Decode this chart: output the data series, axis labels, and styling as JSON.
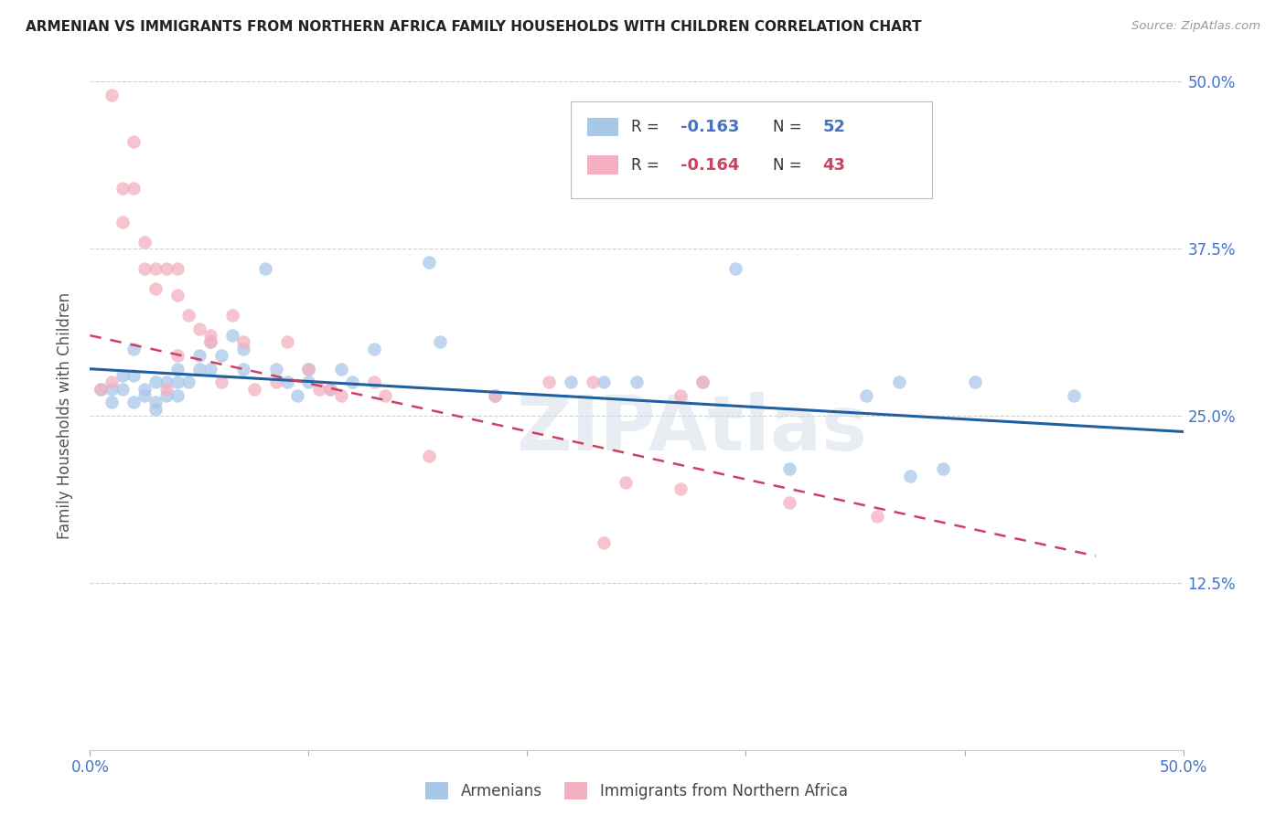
{
  "title": "ARMENIAN VS IMMIGRANTS FROM NORTHERN AFRICA FAMILY HOUSEHOLDS WITH CHILDREN CORRELATION CHART",
  "source": "Source: ZipAtlas.com",
  "ylabel": "Family Households with Children",
  "xlim": [
    0.0,
    0.5
  ],
  "ylim": [
    0.0,
    0.5
  ],
  "xticks": [
    0.0,
    0.1,
    0.2,
    0.3,
    0.4,
    0.5
  ],
  "yticks": [
    0.0,
    0.125,
    0.25,
    0.375,
    0.5
  ],
  "ytick_labels_right": [
    "",
    "12.5%",
    "25.0%",
    "37.5%",
    "50.0%"
  ],
  "xtick_labels": [
    "0.0%",
    "",
    "",
    "",
    "",
    "50.0%"
  ],
  "blue_color": "#a8c8e8",
  "pink_color": "#f4b0c0",
  "blue_line_color": "#2060a0",
  "pink_line_color": "#d04060",
  "legend_label_blue": "Armenians",
  "legend_label_pink": "Immigrants from Northern Africa",
  "watermark": "ZIPAtlas",
  "blue_scatter_x": [
    0.005,
    0.01,
    0.01,
    0.015,
    0.015,
    0.02,
    0.02,
    0.02,
    0.025,
    0.025,
    0.03,
    0.03,
    0.03,
    0.035,
    0.035,
    0.04,
    0.04,
    0.04,
    0.045,
    0.05,
    0.05,
    0.055,
    0.055,
    0.06,
    0.065,
    0.07,
    0.07,
    0.08,
    0.085,
    0.09,
    0.095,
    0.1,
    0.1,
    0.11,
    0.115,
    0.12,
    0.13,
    0.155,
    0.16,
    0.185,
    0.22,
    0.235,
    0.25,
    0.28,
    0.295,
    0.32,
    0.355,
    0.37,
    0.375,
    0.39,
    0.405,
    0.45
  ],
  "blue_scatter_y": [
    0.27,
    0.27,
    0.26,
    0.28,
    0.27,
    0.3,
    0.28,
    0.26,
    0.27,
    0.265,
    0.275,
    0.26,
    0.255,
    0.275,
    0.265,
    0.285,
    0.275,
    0.265,
    0.275,
    0.295,
    0.285,
    0.305,
    0.285,
    0.295,
    0.31,
    0.3,
    0.285,
    0.36,
    0.285,
    0.275,
    0.265,
    0.285,
    0.275,
    0.27,
    0.285,
    0.275,
    0.3,
    0.365,
    0.305,
    0.265,
    0.275,
    0.275,
    0.275,
    0.275,
    0.36,
    0.21,
    0.265,
    0.275,
    0.205,
    0.21,
    0.275,
    0.265
  ],
  "pink_scatter_x": [
    0.005,
    0.01,
    0.01,
    0.015,
    0.015,
    0.02,
    0.02,
    0.025,
    0.025,
    0.03,
    0.03,
    0.035,
    0.035,
    0.04,
    0.04,
    0.04,
    0.045,
    0.05,
    0.055,
    0.055,
    0.06,
    0.065,
    0.07,
    0.075,
    0.085,
    0.09,
    0.1,
    0.105,
    0.11,
    0.115,
    0.13,
    0.135,
    0.155,
    0.185,
    0.21,
    0.23,
    0.235,
    0.245,
    0.27,
    0.27,
    0.28,
    0.32,
    0.36
  ],
  "pink_scatter_y": [
    0.27,
    0.49,
    0.275,
    0.42,
    0.395,
    0.455,
    0.42,
    0.38,
    0.36,
    0.36,
    0.345,
    0.36,
    0.27,
    0.36,
    0.34,
    0.295,
    0.325,
    0.315,
    0.305,
    0.31,
    0.275,
    0.325,
    0.305,
    0.27,
    0.275,
    0.305,
    0.285,
    0.27,
    0.27,
    0.265,
    0.275,
    0.265,
    0.22,
    0.265,
    0.275,
    0.275,
    0.155,
    0.2,
    0.265,
    0.195,
    0.275,
    0.185,
    0.175
  ],
  "blue_line_x0": 0.0,
  "blue_line_x1": 0.5,
  "blue_line_y0": 0.285,
  "blue_line_y1": 0.238,
  "pink_line_x0": 0.0,
  "pink_line_x1": 0.46,
  "pink_line_y0": 0.31,
  "pink_line_y1": 0.145,
  "title_color": "#222222",
  "axis_color": "#4472c4",
  "ylabel_color": "#555555",
  "grid_color": "#cccccc",
  "background_color": "#ffffff"
}
